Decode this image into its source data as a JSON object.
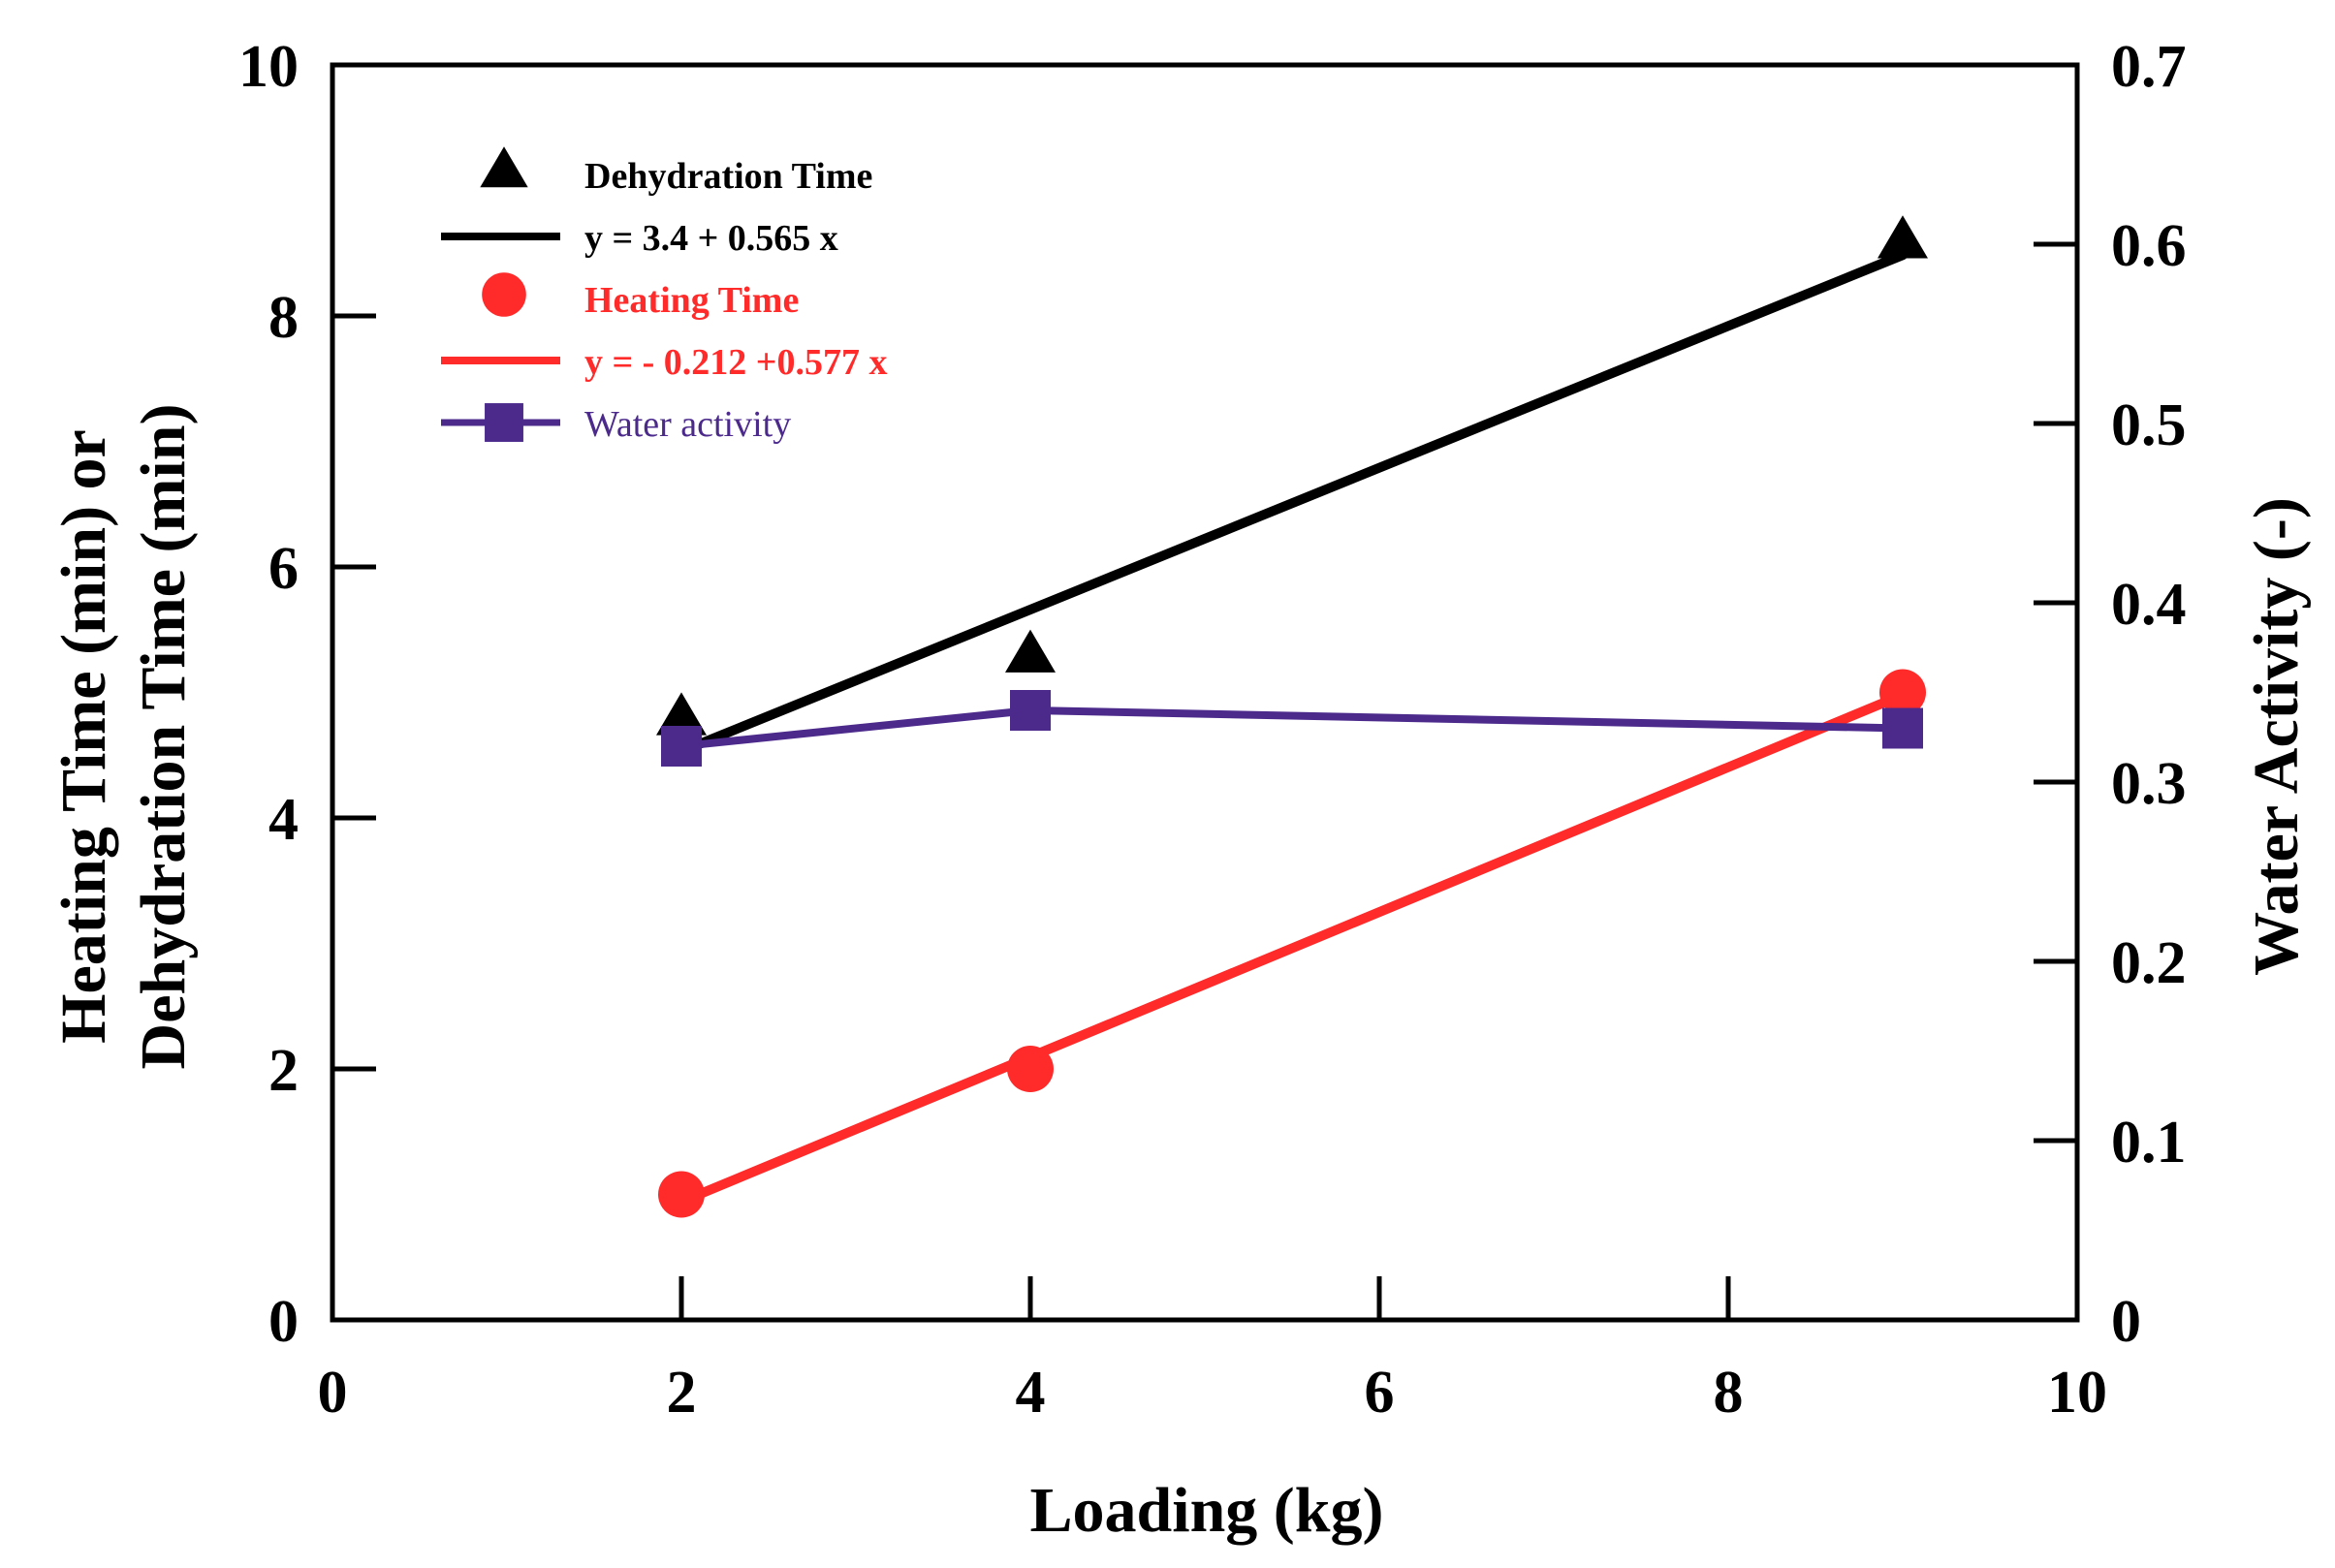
{
  "chart_data": {
    "type": "line",
    "x_axis": {
      "label": "Loading (kg)",
      "range": [
        0,
        10
      ],
      "ticks": [
        0,
        2,
        4,
        6,
        8,
        10
      ],
      "tick_labels": [
        "0",
        "2",
        "4",
        "6",
        "8",
        "10"
      ]
    },
    "y_left": {
      "label_line1": "Heating Time (min) or",
      "label_line2": "Dehydration Time (min)",
      "range": [
        0,
        10
      ],
      "ticks": [
        0,
        2,
        4,
        6,
        8,
        10
      ],
      "tick_labels": [
        "0",
        "2",
        "4",
        "6",
        "8",
        "10"
      ]
    },
    "y_right": {
      "label": "Water Activity (-)",
      "range": [
        0,
        0.7
      ],
      "ticks": [
        0,
        0.1,
        0.2,
        0.3,
        0.4,
        0.5,
        0.6,
        0.7
      ],
      "tick_labels": [
        "0",
        "0.1",
        "0.2",
        "0.3",
        "0.4",
        "0.5",
        "0.6",
        "0.7"
      ]
    },
    "series": [
      {
        "name": "Dehydration Time",
        "axis": "left",
        "marker": "triangle",
        "color": "#000000",
        "points": [
          [
            2,
            4.8
          ],
          [
            4,
            5.3
          ],
          [
            9,
            8.6
          ]
        ]
      },
      {
        "name": "Heating Time",
        "axis": "left",
        "marker": "circle",
        "color": "#ff2a2a",
        "points": [
          [
            2,
            1.0
          ],
          [
            4,
            2.0
          ],
          [
            9,
            5.0
          ]
        ]
      },
      {
        "name": "Water activity",
        "axis": "right",
        "marker": "square",
        "color": "#4b2a8c",
        "connected": true,
        "points": [
          [
            2,
            0.32
          ],
          [
            4,
            0.34
          ],
          [
            9,
            0.33
          ]
        ]
      }
    ],
    "fits": [
      {
        "label": "y = 3.4 + 0.565 x",
        "color": "#000000",
        "intercept": 3.4,
        "slope": 0.565,
        "x_range": [
          2,
          9
        ]
      },
      {
        "label": "y = - 0.212 +0.577 x",
        "color": "#ff2a2a",
        "intercept": -0.212,
        "slope": 0.577,
        "x_range": [
          2,
          9
        ]
      }
    ],
    "legend": {
      "placement": "top-left",
      "entries": [
        {
          "label": "Dehydration Time",
          "kind": "marker",
          "marker": "triangle",
          "color": "#000000",
          "bold": true
        },
        {
          "label": "y = 3.4 + 0.565 x",
          "kind": "line",
          "color": "#000000",
          "bold": true
        },
        {
          "label": "Heating Time",
          "kind": "marker",
          "marker": "circle",
          "color": "#ff2a2a",
          "bold": true
        },
        {
          "label": "y = - 0.212 +0.577 x",
          "kind": "line",
          "color": "#ff2a2a",
          "bold": true
        },
        {
          "label": "Water activity",
          "kind": "line-marker",
          "marker": "square",
          "color": "#4b2a8c",
          "bold": false
        }
      ]
    }
  }
}
